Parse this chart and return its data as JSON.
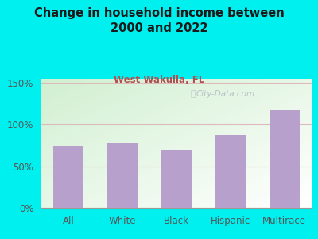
{
  "title": "Change in household income between\n2000 and 2022",
  "subtitle": "West Wakulla, FL",
  "categories": [
    "All",
    "White",
    "Black",
    "Hispanic",
    "Multirace"
  ],
  "values": [
    75,
    78,
    70,
    88,
    118
  ],
  "bar_color": "#b8a0cc",
  "background_outer": "#00f0f0",
  "title_color": "#1a1a1a",
  "subtitle_color": "#b05050",
  "yticks": [
    0,
    50,
    100,
    150
  ],
  "ytick_labels": [
    "0%",
    "50%",
    "100%",
    "150%"
  ],
  "ylim": [
    0,
    155
  ],
  "grid_color": "#ddbbbb",
  "watermark": "City-Data.com",
  "watermark_color": "#b0b8c0"
}
